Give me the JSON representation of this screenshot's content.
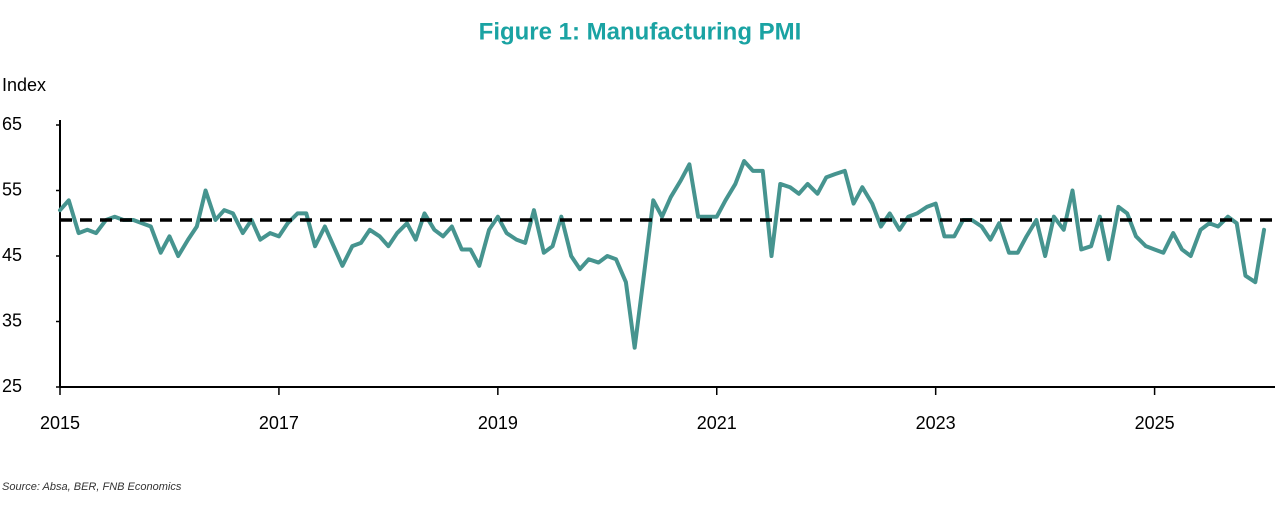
{
  "chart_data": {
    "type": "line",
    "title": "Figure 1: Manufacturing PMI",
    "y_label": "Index",
    "source": "Source: Absa, BER, FNB Economics",
    "xlim": [
      2015,
      2026.1
    ],
    "xticks": [
      2015,
      2017,
      2019,
      2021,
      2023,
      2025
    ],
    "ylim": [
      25,
      65
    ],
    "yticks": [
      25,
      35,
      45,
      55,
      65
    ],
    "reference_line": 50.5,
    "reference_color": "#000000",
    "series": [
      {
        "color": "#46948f",
        "x": [
          2015.0,
          2015.08,
          2015.17,
          2015.25,
          2015.33,
          2015.42,
          2015.5,
          2015.58,
          2015.67,
          2015.75,
          2015.83,
          2015.92,
          2016.0,
          2016.08,
          2016.17,
          2016.25,
          2016.33,
          2016.42,
          2016.5,
          2016.58,
          2016.67,
          2016.75,
          2016.83,
          2016.92,
          2017.0,
          2017.08,
          2017.17,
          2017.25,
          2017.33,
          2017.42,
          2017.5,
          2017.58,
          2017.67,
          2017.75,
          2017.83,
          2017.92,
          2018.0,
          2018.08,
          2018.17,
          2018.25,
          2018.33,
          2018.42,
          2018.5,
          2018.58,
          2018.67,
          2018.75,
          2018.83,
          2018.92,
          2019.0,
          2019.08,
          2019.17,
          2019.25,
          2019.33,
          2019.42,
          2019.5,
          2019.58,
          2019.67,
          2019.75,
          2019.83,
          2019.92,
          2020.0,
          2020.08,
          2020.17,
          2020.25,
          2020.33,
          2020.42,
          2020.5,
          2020.58,
          2020.67,
          2020.75,
          2020.83,
          2020.92,
          2021.0,
          2021.08,
          2021.17,
          2021.25,
          2021.33,
          2021.42,
          2021.5,
          2021.58,
          2021.67,
          2021.75,
          2021.83,
          2021.92,
          2022.0,
          2022.08,
          2022.17,
          2022.25,
          2022.33,
          2022.42,
          2022.5,
          2022.58,
          2022.67,
          2022.75,
          2022.83,
          2022.92,
          2023.0,
          2023.08,
          2023.17,
          2023.25,
          2023.33,
          2023.42,
          2023.5,
          2023.58,
          2023.67,
          2023.75,
          2023.83,
          2023.92,
          2024.0,
          2024.08,
          2024.17,
          2024.25,
          2024.33,
          2024.42,
          2024.5,
          2024.58,
          2024.67,
          2024.75,
          2024.83,
          2024.92,
          2025.0,
          2025.08,
          2025.17,
          2025.25,
          2025.33,
          2025.42,
          2025.5,
          2025.58,
          2025.67,
          2025.75,
          2025.83,
          2025.92,
          2026.0
        ],
        "values": [
          52,
          53.5,
          48.5,
          49,
          48.5,
          50.5,
          51,
          50.5,
          50.5,
          50,
          49.5,
          45.5,
          48,
          45,
          47.5,
          49.5,
          55,
          50.5,
          52,
          51.5,
          48.5,
          50.5,
          47.5,
          48.5,
          48,
          50,
          51.5,
          51.5,
          46.5,
          49.5,
          46.5,
          43.5,
          46.5,
          47,
          49,
          48,
          46.5,
          48.5,
          50,
          47.5,
          51.5,
          49,
          48,
          49.5,
          46,
          46,
          43.5,
          49,
          51,
          48.5,
          47.5,
          47,
          52,
          45.5,
          46.5,
          51,
          45,
          43,
          44.5,
          44,
          45,
          44.5,
          41,
          31,
          41.5,
          53.5,
          51,
          54,
          56.5,
          59,
          51,
          51,
          51,
          53.5,
          56,
          59.5,
          58,
          58,
          45,
          56,
          55.5,
          54.5,
          56,
          54.5,
          57,
          57.5,
          58,
          53,
          55.5,
          53,
          49.5,
          51.5,
          49,
          51,
          51.5,
          52.5,
          53,
          48,
          48,
          50.5,
          50.5,
          49.5,
          47.5,
          50,
          45.5,
          45.5,
          48,
          50.5,
          45,
          51,
          49,
          55,
          46,
          46.5,
          51,
          44.5,
          52.5,
          51.5,
          48,
          46.5,
          46,
          45.5,
          48.5,
          46,
          45,
          49,
          50,
          49.5,
          51,
          50,
          42,
          41,
          49
        ]
      }
    ]
  }
}
